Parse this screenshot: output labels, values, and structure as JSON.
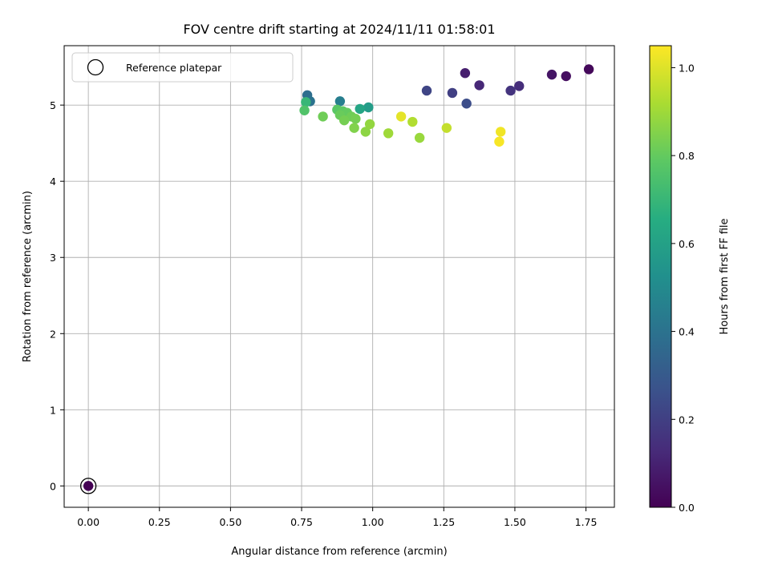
{
  "chart_data": {
    "type": "scatter",
    "title": "FOV centre drift starting at 2024/11/11 01:58:01",
    "xlabel": "Angular distance from reference (arcmin)",
    "ylabel": "Rotation from reference (arcmin)",
    "xlim": [
      -0.085,
      1.85
    ],
    "ylim": [
      -0.28,
      5.78
    ],
    "xticks": [
      "0.00",
      "0.25",
      "0.50",
      "0.75",
      "1.00",
      "1.25",
      "1.50",
      "1.75"
    ],
    "xtick_values": [
      0,
      0.25,
      0.5,
      0.75,
      1.0,
      1.25,
      1.5,
      1.75
    ],
    "yticks": [
      "0",
      "1",
      "2",
      "3",
      "4",
      "5"
    ],
    "ytick_values": [
      0,
      1,
      2,
      3,
      4,
      5
    ],
    "grid": true,
    "legend": {
      "placement": "top-left",
      "label": "Reference platepar"
    },
    "reference_point": {
      "x": 0,
      "y": 0
    },
    "colorbar": {
      "label": "Hours from first FF file",
      "colormap": "viridis",
      "range": [
        0.0,
        1.05
      ],
      "ticks": [
        "0.0",
        "0.2",
        "0.4",
        "0.6",
        "0.8",
        "1.0"
      ],
      "tick_values": [
        0,
        0.2,
        0.4,
        0.6,
        0.8,
        1.0
      ]
    },
    "points": [
      {
        "x": 0.0,
        "y": 0.0,
        "hours": 0.0
      },
      {
        "x": 1.76,
        "y": 5.47,
        "hours": 0.02
      },
      {
        "x": 1.68,
        "y": 5.38,
        "hours": 0.04
      },
      {
        "x": 1.63,
        "y": 5.4,
        "hours": 0.06
      },
      {
        "x": 1.325,
        "y": 5.42,
        "hours": 0.09
      },
      {
        "x": 1.375,
        "y": 5.26,
        "hours": 0.12
      },
      {
        "x": 1.515,
        "y": 5.25,
        "hours": 0.14
      },
      {
        "x": 1.485,
        "y": 5.19,
        "hours": 0.16
      },
      {
        "x": 1.28,
        "y": 5.16,
        "hours": 0.2
      },
      {
        "x": 1.19,
        "y": 5.19,
        "hours": 0.22
      },
      {
        "x": 1.33,
        "y": 5.02,
        "hours": 0.25
      },
      {
        "x": 0.77,
        "y": 5.13,
        "hours": 0.38
      },
      {
        "x": 0.78,
        "y": 5.05,
        "hours": 0.4
      },
      {
        "x": 0.885,
        "y": 5.05,
        "hours": 0.45
      },
      {
        "x": 0.985,
        "y": 4.97,
        "hours": 0.58
      },
      {
        "x": 0.955,
        "y": 4.95,
        "hours": 0.62
      },
      {
        "x": 0.765,
        "y": 5.04,
        "hours": 0.7
      },
      {
        "x": 0.76,
        "y": 4.93,
        "hours": 0.76
      },
      {
        "x": 0.875,
        "y": 4.94,
        "hours": 0.78
      },
      {
        "x": 0.895,
        "y": 4.92,
        "hours": 0.79
      },
      {
        "x": 0.91,
        "y": 4.9,
        "hours": 0.8
      },
      {
        "x": 0.885,
        "y": 4.87,
        "hours": 0.81
      },
      {
        "x": 0.925,
        "y": 4.85,
        "hours": 0.82
      },
      {
        "x": 0.825,
        "y": 4.85,
        "hours": 0.82
      },
      {
        "x": 0.94,
        "y": 4.82,
        "hours": 0.83
      },
      {
        "x": 0.9,
        "y": 4.8,
        "hours": 0.83
      },
      {
        "x": 0.935,
        "y": 4.7,
        "hours": 0.85
      },
      {
        "x": 0.975,
        "y": 4.65,
        "hours": 0.87
      },
      {
        "x": 0.99,
        "y": 4.75,
        "hours": 0.88
      },
      {
        "x": 1.165,
        "y": 4.57,
        "hours": 0.89
      },
      {
        "x": 1.055,
        "y": 4.63,
        "hours": 0.9
      },
      {
        "x": 1.14,
        "y": 4.78,
        "hours": 0.93
      },
      {
        "x": 1.26,
        "y": 4.7,
        "hours": 0.96
      },
      {
        "x": 1.1,
        "y": 4.85,
        "hours": 1.01
      },
      {
        "x": 1.45,
        "y": 4.65,
        "hours": 1.03
      },
      {
        "x": 1.445,
        "y": 4.52,
        "hours": 1.04
      }
    ]
  }
}
